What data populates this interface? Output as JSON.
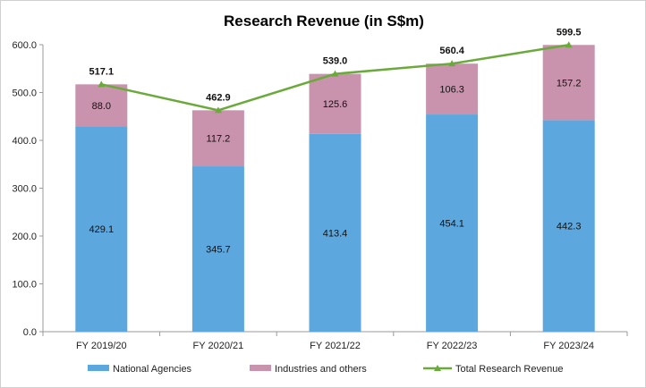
{
  "chart_data": {
    "type": "bar",
    "title": "Research Revenue (in S$m)",
    "categories": [
      "FY 2019/20",
      "FY 2020/21",
      "FY 2021/22",
      "FY 2022/23",
      "FY 2023/24"
    ],
    "series": [
      {
        "name": "National Agencies",
        "type": "bar",
        "stacked": true,
        "color": "#5ba7de",
        "values": [
          429.1,
          345.7,
          413.4,
          454.1,
          442.3
        ]
      },
      {
        "name": "Industries and others",
        "type": "bar",
        "stacked": true,
        "color": "#c993ae",
        "values": [
          88.0,
          117.2,
          125.6,
          106.3,
          157.2
        ]
      },
      {
        "name": "Total Research Revenue",
        "type": "line",
        "marker": "triangle",
        "color": "#6aaa3a",
        "values": [
          517.1,
          462.9,
          539.0,
          560.4,
          599.5
        ]
      }
    ],
    "ylim": [
      0,
      600
    ],
    "yticks": [
      "0.0",
      "100.0",
      "200.0",
      "300.0",
      "400.0",
      "500.0",
      "600.0"
    ],
    "grid": false,
    "legend": "bottom"
  }
}
